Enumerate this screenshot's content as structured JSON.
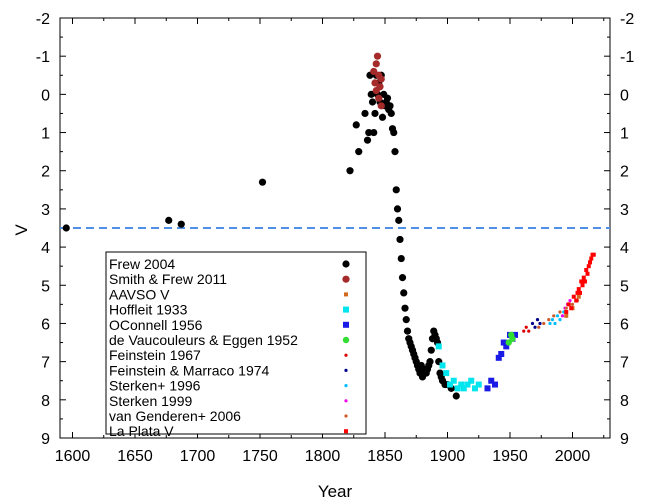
{
  "chart_data": {
    "type": "scatter",
    "xlabel": "Year",
    "ylabel": "V",
    "xlim": [
      1590,
      2030
    ],
    "ylim": [
      9,
      -2
    ],
    "y_inverted": true,
    "grid": false,
    "legend_placement": "bottom-left",
    "x_ticks": [
      1600,
      1650,
      1700,
      1750,
      1800,
      1850,
      1900,
      1950,
      2000
    ],
    "y_ticks": [
      -2,
      -1,
      0,
      1,
      2,
      3,
      4,
      5,
      6,
      7,
      8,
      9
    ],
    "x_tick_labels": [
      "1600",
      "1650",
      "1700",
      "1750",
      "1800",
      "1850",
      "1900",
      "1950",
      "2000"
    ],
    "y_tick_labels": [
      "-2",
      "-1",
      "0",
      "1",
      "2",
      "3",
      "4",
      "5",
      "6",
      "7",
      "8",
      "9"
    ],
    "reference_line": {
      "y": 3.5,
      "color": "#4f8fe6",
      "style": "dashed"
    },
    "series": [
      {
        "name": "Frew 2004",
        "color": "#000000",
        "marker": "circle-large",
        "points": [
          [
            1595,
            3.5
          ],
          [
            1677,
            3.3
          ],
          [
            1687,
            3.4
          ],
          [
            1752,
            2.3
          ],
          [
            1822,
            2.0
          ],
          [
            1827,
            0.8
          ],
          [
            1829,
            1.5
          ],
          [
            1834,
            0.5
          ],
          [
            1836,
            1.2
          ],
          [
            1837,
            1.0
          ],
          [
            1838,
            -0.5
          ],
          [
            1839,
            0.0
          ],
          [
            1840,
            0.2
          ],
          [
            1841,
            1.0
          ],
          [
            1842,
            0.5
          ],
          [
            1843,
            -0.5
          ],
          [
            1844,
            0.0
          ],
          [
            1845,
            -0.3
          ],
          [
            1846,
            0.2
          ],
          [
            1847,
            -0.5
          ],
          [
            1848,
            0.6
          ],
          [
            1849,
            0.0
          ],
          [
            1850,
            0.3
          ],
          [
            1851,
            0.2
          ],
          [
            1852,
            0.1
          ],
          [
            1853,
            0.4
          ],
          [
            1854,
            0.3
          ],
          [
            1855,
            0.5
          ],
          [
            1856,
            0.9
          ],
          [
            1857,
            1.0
          ],
          [
            1858,
            1.5
          ],
          [
            1859,
            2.5
          ],
          [
            1860,
            3.0
          ],
          [
            1861,
            3.3
          ],
          [
            1862,
            3.8
          ],
          [
            1863,
            4.3
          ],
          [
            1864,
            4.8
          ],
          [
            1865,
            5.2
          ],
          [
            1866,
            5.6
          ],
          [
            1867,
            5.9
          ],
          [
            1868,
            6.2
          ],
          [
            1869,
            6.4
          ],
          [
            1870,
            6.5
          ],
          [
            1871,
            6.6
          ],
          [
            1872,
            6.7
          ],
          [
            1873,
            6.8
          ],
          [
            1874,
            6.9
          ],
          [
            1875,
            7.0
          ],
          [
            1876,
            7.1
          ],
          [
            1877,
            7.2
          ],
          [
            1878,
            7.3
          ],
          [
            1879,
            7.1
          ],
          [
            1880,
            7.4
          ],
          [
            1881,
            7.2
          ],
          [
            1882,
            7.3
          ],
          [
            1883,
            7.3
          ],
          [
            1884,
            7.2
          ],
          [
            1885,
            7.1
          ],
          [
            1886,
            7.0
          ],
          [
            1887,
            6.7
          ],
          [
            1888,
            6.4
          ],
          [
            1889,
            6.2
          ],
          [
            1890,
            6.3
          ],
          [
            1891,
            6.4
          ],
          [
            1892,
            6.5
          ],
          [
            1893,
            7.0
          ],
          [
            1894,
            7.3
          ],
          [
            1895,
            7.4
          ],
          [
            1896,
            7.5
          ],
          [
            1898,
            7.6
          ],
          [
            1900,
            7.6
          ],
          [
            1903,
            7.7
          ],
          [
            1907,
            7.9
          ]
        ]
      },
      {
        "name": "Smith & Frew 2011",
        "color": "#a52a2a",
        "marker": "circle-large",
        "points": [
          [
            1841,
            -0.6
          ],
          [
            1842,
            -0.3
          ],
          [
            1843,
            -0.8
          ],
          [
            1843,
            -0.1
          ],
          [
            1844,
            -1.0
          ],
          [
            1845,
            -0.5
          ],
          [
            1845,
            0.1
          ],
          [
            1846,
            -0.2
          ],
          [
            1847,
            -0.4
          ],
          [
            1847,
            0.3
          ]
        ]
      },
      {
        "name": "AAVSO V",
        "color": "#d2691e",
        "marker": "square-small",
        "points": [
          [
            1995,
            5.8
          ],
          [
            2000,
            5.6
          ],
          [
            2005,
            5.3
          ],
          [
            2010,
            4.9
          ]
        ]
      },
      {
        "name": "Hoffleit 1933",
        "color": "#00e5ee",
        "marker": "square",
        "points": [
          [
            1893,
            6.6
          ],
          [
            1896,
            7.1
          ],
          [
            1899,
            7.3
          ],
          [
            1902,
            7.6
          ],
          [
            1905,
            7.5
          ],
          [
            1908,
            7.7
          ],
          [
            1911,
            7.6
          ],
          [
            1913,
            7.7
          ],
          [
            1916,
            7.6
          ],
          [
            1919,
            7.5
          ],
          [
            1922,
            7.7
          ],
          [
            1925,
            7.6
          ]
        ]
      },
      {
        "name": "OConnell 1956",
        "color": "#1a1ae6",
        "marker": "square",
        "points": [
          [
            1932,
            7.7
          ],
          [
            1935,
            7.5
          ],
          [
            1938,
            7.6
          ],
          [
            1941,
            6.9
          ],
          [
            1943,
            6.8
          ],
          [
            1945,
            6.5
          ],
          [
            1947,
            6.6
          ],
          [
            1950,
            6.3
          ],
          [
            1952,
            6.4
          ],
          [
            1954,
            6.3
          ]
        ]
      },
      {
        "name": "de Vaucouleurs & Eggen 1952",
        "color": "#33dd33",
        "marker": "circle",
        "points": [
          [
            1949,
            6.5
          ],
          [
            1951,
            6.3
          ],
          [
            1952,
            6.4
          ]
        ]
      },
      {
        "name": "Feinstein 1967",
        "color": "#dd0000",
        "marker": "dot",
        "points": [
          [
            1961,
            6.2
          ],
          [
            1963,
            6.1
          ],
          [
            1965,
            6.2
          ]
        ]
      },
      {
        "name": "Feinstein & Marraco 1974",
        "color": "#00008b",
        "marker": "dot",
        "points": [
          [
            1968,
            6.0
          ],
          [
            1970,
            6.1
          ],
          [
            1972,
            5.9
          ],
          [
            1974,
            6.0
          ]
        ]
      },
      {
        "name": "Sterken+ 1996",
        "color": "#00bfff",
        "marker": "dot",
        "points": [
          [
            1982,
            6.0
          ],
          [
            1984,
            5.9
          ],
          [
            1986,
            6.0
          ],
          [
            1988,
            5.8
          ],
          [
            1990,
            5.9
          ],
          [
            1993,
            5.7
          ]
        ]
      },
      {
        "name": "Sterken 1999",
        "color": "#ee00ee",
        "marker": "dot",
        "points": [
          [
            1992,
            5.8
          ],
          [
            1994,
            5.6
          ],
          [
            1996,
            5.5
          ],
          [
            1998,
            5.4
          ]
        ]
      },
      {
        "name": "van Genderen+ 2006",
        "color": "#cd5c2c",
        "marker": "dot",
        "points": [
          [
            1973,
            6.1
          ],
          [
            1977,
            6.0
          ],
          [
            1981,
            5.9
          ],
          [
            1985,
            5.8
          ],
          [
            1990,
            5.7
          ],
          [
            1995,
            5.6
          ],
          [
            2000,
            5.5
          ],
          [
            2004,
            5.4
          ]
        ]
      },
      {
        "name": "La Plata V",
        "color": "#ff0000",
        "marker": "square-small",
        "points": [
          [
            1995,
            5.7
          ],
          [
            1997,
            5.5
          ],
          [
            1999,
            5.6
          ],
          [
            2001,
            5.3
          ],
          [
            2003,
            5.4
          ],
          [
            2004,
            5.2
          ],
          [
            2005,
            5.1
          ],
          [
            2006,
            5.2
          ],
          [
            2007,
            4.9
          ],
          [
            2008,
            5.0
          ],
          [
            2009,
            4.8
          ],
          [
            2010,
            4.9
          ],
          [
            2011,
            4.6
          ],
          [
            2012,
            4.7
          ],
          [
            2013,
            4.5
          ],
          [
            2014,
            4.4
          ],
          [
            2015,
            4.3
          ],
          [
            2016,
            4.2
          ],
          [
            2017,
            4.2
          ]
        ]
      }
    ]
  }
}
